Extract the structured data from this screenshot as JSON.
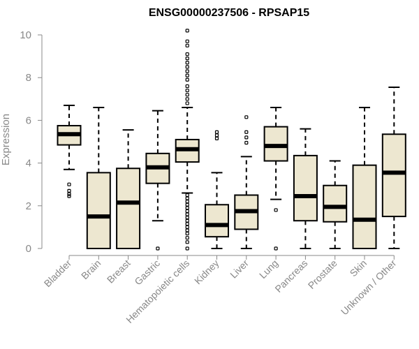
{
  "chart_data": {
    "type": "box",
    "title": "ENSG00000237506 - RPSAP15",
    "xlabel": "",
    "ylabel": "Expression",
    "ylim": [
      0,
      10
    ],
    "yticks": [
      0,
      2,
      4,
      6,
      8,
      10
    ],
    "box_fill": "#ede7d0",
    "categories": [
      "Bladder",
      "Brain",
      "Breast",
      "Gastric",
      "Hematopoietic cells",
      "Kidney",
      "Liver",
      "Lung",
      "Pancreas",
      "Prostate",
      "Skin",
      "Unknown / Other"
    ],
    "series": [
      {
        "name": "Bladder",
        "min": 3.7,
        "q1": 4.85,
        "median": 5.35,
        "q3": 5.75,
        "max": 6.7,
        "outliers": [
          3.0,
          2.7,
          2.55,
          2.45
        ]
      },
      {
        "name": "Brain",
        "min": 0,
        "q1": 0,
        "median": 1.5,
        "q3": 3.55,
        "max": 6.6,
        "outliers": []
      },
      {
        "name": "Breast",
        "min": 0,
        "q1": 0,
        "median": 2.15,
        "q3": 3.75,
        "max": 5.55,
        "outliers": []
      },
      {
        "name": "Gastric",
        "min": 1.3,
        "q1": 3.05,
        "median": 3.8,
        "q3": 4.45,
        "max": 6.45,
        "outliers": [
          0
        ]
      },
      {
        "name": "Hematopoietic cells",
        "min": 2.6,
        "q1": 4.05,
        "median": 4.65,
        "q3": 5.1,
        "max": 6.6,
        "outliers": [
          10.2,
          9.7,
          9.5,
          9.1,
          8.9,
          8.7,
          8.5,
          8.3,
          8.1,
          7.9,
          7.6,
          7.4,
          7.2,
          7.0,
          6.8,
          2.5,
          2.35,
          2.2,
          2.05,
          1.9,
          1.75,
          1.6,
          1.45,
          1.3,
          1.15,
          1.0,
          0.85,
          0.7,
          0.5,
          0.3,
          0
        ]
      },
      {
        "name": "Kidney",
        "min": 0,
        "q1": 0.55,
        "median": 1.1,
        "q3": 2.05,
        "max": 3.55,
        "outliers": [
          5.45,
          5.3,
          5.15
        ]
      },
      {
        "name": "Liver",
        "min": 0,
        "q1": 0.9,
        "median": 1.75,
        "q3": 2.5,
        "max": 4.3,
        "outliers": [
          6.15,
          5.45,
          5.2,
          4.95
        ]
      },
      {
        "name": "Lung",
        "min": 2.3,
        "q1": 4.1,
        "median": 4.8,
        "q3": 5.7,
        "max": 6.6,
        "outliers": [
          1.8,
          0
        ]
      },
      {
        "name": "Pancreas",
        "min": 0,
        "q1": 1.3,
        "median": 2.45,
        "q3": 4.35,
        "max": 5.6,
        "outliers": []
      },
      {
        "name": "Prostate",
        "min": 0,
        "q1": 1.25,
        "median": 1.95,
        "q3": 2.95,
        "max": 4.1,
        "outliers": []
      },
      {
        "name": "Skin",
        "min": 0,
        "q1": 0,
        "median": 1.35,
        "q3": 3.9,
        "max": 6.6,
        "outliers": []
      },
      {
        "name": "Unknown / Other",
        "min": 0,
        "q1": 1.5,
        "median": 3.55,
        "q3": 5.35,
        "max": 7.55,
        "outliers": []
      }
    ]
  }
}
